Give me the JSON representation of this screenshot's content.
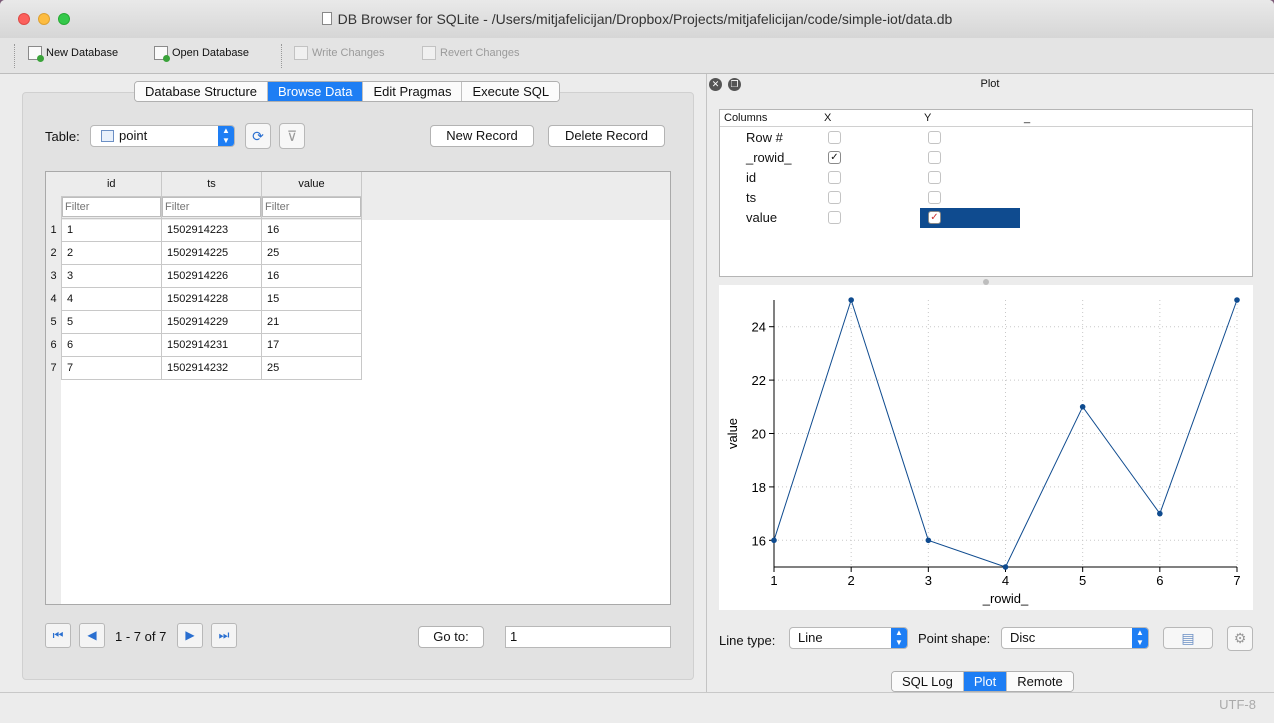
{
  "window": {
    "title": "DB Browser for SQLite - /Users/mitjafelicijan/Dropbox/Projects/mitjafelicijan/code/simple-iot/data.db"
  },
  "toolbar": {
    "new_database": "New Database",
    "open_database": "Open Database",
    "write_changes": "Write Changes",
    "revert_changes": "Revert Changes"
  },
  "tabs": [
    "Database Structure",
    "Browse Data",
    "Edit Pragmas",
    "Execute SQL"
  ],
  "browse": {
    "table_label": "Table:",
    "table_value": "point",
    "new_record": "New Record",
    "delete_record": "Delete Record",
    "columns": [
      "id",
      "ts",
      "value"
    ],
    "filter_placeholder": "Filter",
    "rows": [
      [
        "1",
        "1502914223",
        "16"
      ],
      [
        "2",
        "1502914225",
        "25"
      ],
      [
        "3",
        "1502914226",
        "16"
      ],
      [
        "4",
        "1502914228",
        "15"
      ],
      [
        "5",
        "1502914229",
        "21"
      ],
      [
        "6",
        "1502914231",
        "17"
      ],
      [
        "7",
        "1502914232",
        "25"
      ]
    ],
    "row_numbers": [
      "1",
      "2",
      "3",
      "4",
      "5",
      "6",
      "7"
    ],
    "pager": "1 - 7 of 7",
    "goto_label": "Go to:",
    "goto_value": "1"
  },
  "plot_panel": {
    "title": "Plot",
    "columns_header": "Columns",
    "x_header": "X",
    "y_header": "Y",
    "extra_header": "_",
    "column_rows": [
      {
        "name": "Row #",
        "x": false,
        "y": false
      },
      {
        "name": "_rowid_",
        "x": true,
        "y": false
      },
      {
        "name": "id",
        "x": false,
        "y": false
      },
      {
        "name": "ts",
        "x": false,
        "y": false
      },
      {
        "name": "value",
        "x": false,
        "y": true
      }
    ],
    "line_type_label": "Line type:",
    "line_type_value": "Line",
    "point_shape_label": "Point shape:",
    "point_shape_value": "Disc"
  },
  "chart_data": {
    "type": "line",
    "x": [
      1,
      2,
      3,
      4,
      5,
      6,
      7
    ],
    "series": [
      {
        "values": [
          16,
          25,
          16,
          15,
          21,
          17,
          25
        ]
      }
    ],
    "xlabel": "_rowid_",
    "ylabel": "value",
    "xlim": [
      1,
      7
    ],
    "ylim": [
      15,
      25
    ],
    "x_ticks": [
      "1",
      "2",
      "3",
      "4",
      "5",
      "6",
      "7"
    ],
    "y_ticks": [
      "16",
      "18",
      "20",
      "22",
      "24"
    ],
    "grid": true,
    "color": "#0f4b8f"
  },
  "bottom_tabs": [
    "SQL Log",
    "Plot",
    "Remote"
  ],
  "status": {
    "encoding": "UTF-8"
  }
}
